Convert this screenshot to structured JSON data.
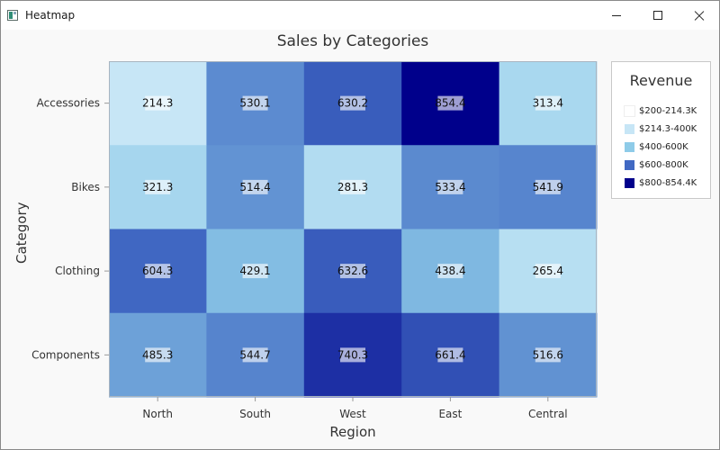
{
  "window": {
    "title": "Heatmap"
  },
  "chart_data": {
    "type": "heatmap",
    "title": "Sales by Categories",
    "xlabel": "Region",
    "ylabel": "Category",
    "x": [
      "North",
      "South",
      "West",
      "East",
      "Central"
    ],
    "y": [
      "Accessories",
      "Bikes",
      "Clothing",
      "Components"
    ],
    "values": [
      [
        214.3,
        530.1,
        630.2,
        854.4,
        313.4
      ],
      [
        321.3,
        514.4,
        281.3,
        533.4,
        541.9
      ],
      [
        604.3,
        429.1,
        632.6,
        438.4,
        265.4
      ],
      [
        485.3,
        544.7,
        740.3,
        661.4,
        516.6
      ]
    ],
    "value_labels": [
      [
        "214.3",
        "530.1",
        "630.2",
        "854.4",
        "313.4"
      ],
      [
        "321.3",
        "514.4",
        "281.3",
        "533.4",
        "541.9"
      ],
      [
        "604.3",
        "429.1",
        "632.6",
        "438.4",
        "265.4"
      ],
      [
        "485.3",
        "544.7",
        "740.3",
        "661.4",
        "516.6"
      ]
    ],
    "color_range_stops": [
      200,
      214.3,
      400,
      600,
      800,
      854.4
    ],
    "colors": [
      "#ffffff",
      "#c7e6f6",
      "#8ecbe8",
      "#4169c3",
      "#00008b"
    ],
    "legend": {
      "title": "Revenue",
      "position": "right",
      "items": [
        {
          "label": "$200-214.3K",
          "color": "#ffffff"
        },
        {
          "label": "$214.3-400K",
          "color": "#c7e6f6"
        },
        {
          "label": "$400-600K",
          "color": "#8ecbe8"
        },
        {
          "label": "$600-800K",
          "color": "#4169c3"
        },
        {
          "label": "$800-854.4K",
          "color": "#00008b"
        }
      ]
    }
  }
}
